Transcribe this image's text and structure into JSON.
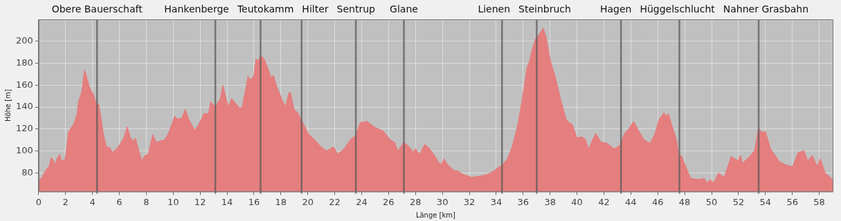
{
  "chart_data": {
    "type": "area",
    "xlabel": "Länge [km]",
    "ylabel": "Höhe [m]",
    "xlim": [
      0,
      59
    ],
    "xticks": [
      0,
      2,
      4,
      6,
      8,
      10,
      12,
      14,
      16,
      18,
      20,
      22,
      24,
      26,
      28,
      30,
      32,
      34,
      36,
      38,
      40,
      42,
      44,
      46,
      48,
      50,
      52,
      54,
      56,
      58
    ],
    "ylim": [
      63,
      220
    ],
    "yticks": [
      80,
      100,
      120,
      140,
      160,
      180,
      200
    ],
    "grid": true,
    "marker": "none",
    "legend": false,
    "series": [
      {
        "color": "#e77a7a",
        "x": [
          0,
          0.21,
          0.55,
          0.78,
          0.93,
          1.07,
          1.21,
          1.36,
          1.57,
          1.69,
          1.95,
          2.02,
          2.21,
          2.4,
          2.62,
          2.84,
          2.98,
          3.19,
          3.41,
          3.6,
          3.78,
          4.09,
          4.26,
          4.48,
          4.81,
          5.03,
          5.29,
          5.47,
          5.72,
          5.98,
          6.29,
          6.59,
          6.81,
          7.1,
          7.19,
          7.4,
          7.67,
          7.91,
          8.14,
          8.48,
          8.74,
          9.0,
          9.34,
          9.64,
          10.12,
          10.29,
          10.64,
          10.9,
          11.16,
          11.59,
          11.84,
          12.28,
          12.62,
          12.79,
          12.97,
          13.14,
          13.48,
          13.69,
          13.91,
          14.09,
          14.34,
          14.52,
          14.95,
          15.12,
          15.38,
          15.55,
          15.72,
          15.98,
          16.16,
          16.33,
          16.5,
          16.76,
          17.02,
          17.28,
          17.45,
          17.71,
          18.05,
          18.34,
          18.59,
          18.72,
          18.98,
          19.24,
          19.55,
          20.02,
          20.53,
          20.88,
          21.4,
          21.91,
          22.21,
          22.69,
          23.21,
          23.55,
          23.9,
          24.41,
          24.93,
          25.62,
          26.14,
          26.45,
          26.69,
          27.14,
          27.52,
          27.83,
          28.0,
          28.29,
          28.69,
          28.98,
          29.41,
          29.76,
          29.97,
          30.1,
          30.36,
          30.88,
          31.14,
          31.48,
          32.17,
          32.69,
          33.21,
          33.72,
          34.16,
          34.5,
          34.84,
          35.19,
          35.62,
          35.97,
          36.28,
          36.48,
          36.66,
          36.91,
          37.17,
          37.48,
          37.69,
          38.03,
          38.38,
          38.81,
          39.22,
          39.66,
          40.0,
          40.34,
          40.6,
          40.86,
          41.38,
          41.81,
          42.24,
          42.76,
          43.19,
          43.53,
          43.7,
          44.22,
          44.56,
          45.0,
          45.43,
          45.77,
          46.11,
          46.46,
          46.63,
          46.8,
          47.06,
          47.4,
          47.58,
          47.75,
          48.01,
          48.44,
          49.04,
          49.47,
          49.65,
          49.9,
          50.16,
          50.51,
          50.94,
          51.45,
          51.97,
          52.14,
          52.31,
          52.83,
          53.18,
          53.49,
          53.78,
          54.0,
          54.38,
          54.73,
          55.07,
          55.59,
          56.02,
          56.45,
          56.88,
          57.14,
          57.48,
          57.83,
          58.09,
          58.43,
          59.0
        ],
        "values": [
          74,
          75,
          83,
          86,
          94,
          92,
          87,
          93,
          97,
          91,
          92,
          96,
          117,
          121,
          125,
          133,
          146,
          153,
          174,
          166,
          158,
          151,
          144,
          142,
          116,
          104,
          103,
          99,
          101,
          105,
          111,
          122,
          112,
          109,
          112,
          102,
          91,
          96,
          97,
          115,
          108,
          109,
          110,
          116,
          132,
          129,
          130,
          138,
          129,
          119,
          123,
          134,
          134,
          145,
          142,
          141,
          147,
          160,
          149,
          140,
          148,
          145,
          139,
          140,
          156,
          168,
          165,
          168,
          184,
          182,
          187,
          184,
          176,
          167,
          169,
          158,
          148,
          140,
          153,
          153,
          138,
          135,
          128,
          116,
          110,
          105,
          100,
          104,
          97,
          102,
          111,
          114,
          126,
          127,
          122,
          118,
          110,
          108,
          100,
          108,
          104,
          99,
          102,
          97,
          106,
          103,
          96,
          89,
          88,
          93,
          88,
          82,
          82,
          79,
          76,
          77,
          78,
          81,
          85,
          88,
          93,
          104,
          125,
          150,
          176,
          182,
          192,
          202,
          206,
          212,
          205,
          182,
          168,
          146,
          128,
          124,
          112,
          113,
          111,
          102,
          116,
          108,
          107,
          102,
          105,
          116,
          118,
          127,
          119,
          110,
          107,
          115,
          129,
          135,
          132,
          134,
          123,
          110,
          94,
          96,
          88,
          75,
          74,
          75,
          71,
          74,
          71,
          80,
          76,
          95,
          91,
          96,
          89,
          95,
          100,
          120,
          117,
          118,
          102,
          96,
          90,
          87,
          86,
          99,
          100,
          91,
          96,
          86,
          93,
          80,
          74
        ]
      }
    ],
    "ref_lines": [
      {
        "axis": "x",
        "value": 4.34,
        "label": "Obere Bauerschaft",
        "color": "#5a5a5a"
      },
      {
        "axis": "x",
        "value": 13.13,
        "label": "Hankenberge",
        "color": "#5a5a5a"
      },
      {
        "axis": "x",
        "value": 16.49,
        "label": "Teutokamm",
        "color": "#5a5a5a"
      },
      {
        "axis": "x",
        "value": 19.54,
        "label": "Hilter",
        "color": "#5a5a5a"
      },
      {
        "axis": "x",
        "value": 23.57,
        "label": "Sentrup",
        "color": "#5a5a5a"
      },
      {
        "axis": "x",
        "value": 27.14,
        "label": "Glane",
        "color": "#5a5a5a"
      },
      {
        "axis": "x",
        "value": 34.43,
        "label": "Lienen",
        "color": "#5a5a5a"
      },
      {
        "axis": "x",
        "value": 37.01,
        "label": "Steinbruch",
        "color": "#5a5a5a"
      },
      {
        "axis": "x",
        "value": 43.27,
        "label": "Hagen",
        "color": "#5a5a5a"
      },
      {
        "axis": "x",
        "value": 47.61,
        "label": "Hüggelschlucht",
        "color": "#5a5a5a"
      },
      {
        "axis": "x",
        "value": 53.5,
        "label": "Nahner Grasbahn",
        "color": "#5a5a5a"
      }
    ]
  }
}
